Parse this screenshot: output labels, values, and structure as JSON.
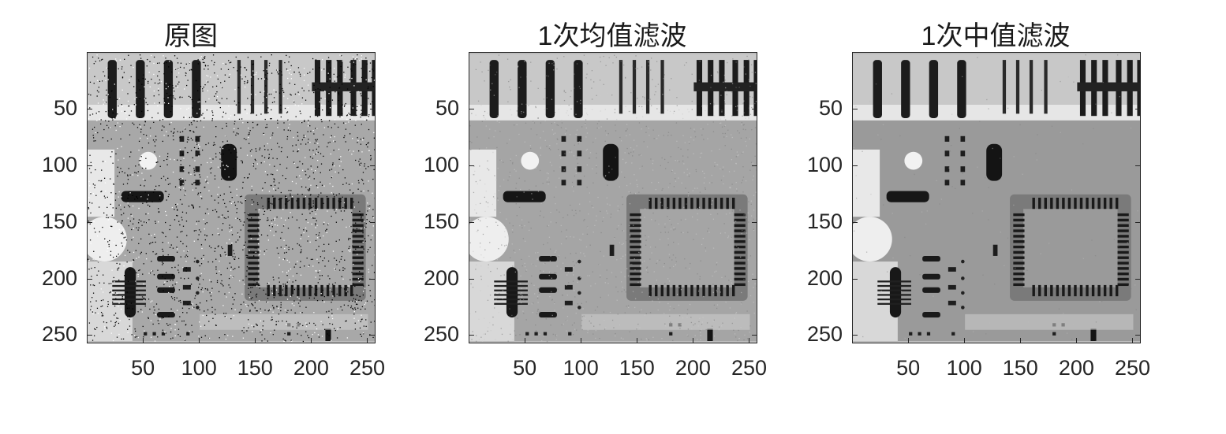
{
  "figure": {
    "panels": [
      {
        "title": "原图",
        "noise": "salt-pepper"
      },
      {
        "title": "1次均值滤波",
        "noise": "blur"
      },
      {
        "title": "1次中值滤波",
        "noise": "median"
      }
    ],
    "x_ticks": [
      "50",
      "100",
      "150",
      "200",
      "250"
    ],
    "y_ticks": [
      "50",
      "100",
      "150",
      "200",
      "250"
    ]
  },
  "colors": {
    "axis": "#262626",
    "background": "#ffffff"
  }
}
